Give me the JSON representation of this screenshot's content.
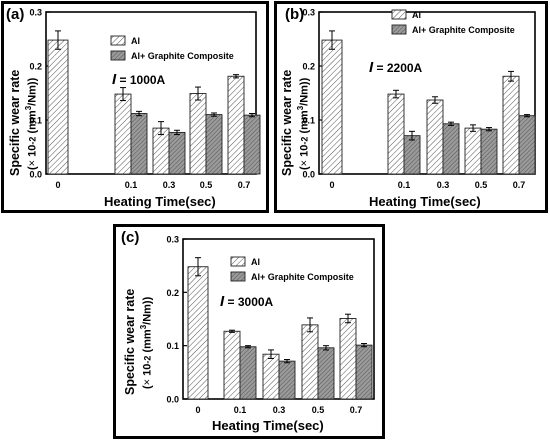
{
  "chart_data": [
    {
      "type": "bar",
      "panel_label": "(a)",
      "current_symbol": "I",
      "current_text": "= 1000A",
      "categories": [
        "0",
        "0.1",
        "0.3",
        "0.5",
        "0.7"
      ],
      "series": [
        {
          "name": "Al",
          "values": [
            0.248,
            0.148,
            0.085,
            0.149,
            0.181
          ],
          "errors": [
            0.017,
            0.012,
            0.012,
            0.012,
            0.003
          ]
        },
        {
          "name": "Al+ Graphite Composite",
          "values": [
            null,
            0.112,
            0.077,
            0.11,
            0.109
          ],
          "errors": [
            null,
            0.004,
            0.004,
            0.003,
            0.003
          ]
        }
      ],
      "ylabel_main": "Specific wear rate",
      "ylabel_unit": "(× 10-2 (mm3/Nm))",
      "xlabel": "Heating Time(sec)",
      "yticks": [
        "0.0",
        "0.1",
        "0.2",
        "0.3"
      ],
      "ylim": [
        0,
        0.3
      ],
      "legend": "top-right",
      "grid": false
    },
    {
      "type": "bar",
      "panel_label": "(b)",
      "current_symbol": "I",
      "current_text": "= 2200A",
      "categories": [
        "0",
        "0.1",
        "0.3",
        "0.5",
        "0.7"
      ],
      "series": [
        {
          "name": "Al",
          "values": [
            0.248,
            0.148,
            0.137,
            0.085,
            0.181
          ],
          "errors": [
            0.017,
            0.007,
            0.006,
            0.006,
            0.009
          ]
        },
        {
          "name": "Al+ Graphite Composite",
          "values": [
            null,
            0.071,
            0.093,
            0.083,
            0.108
          ],
          "errors": [
            null,
            0.008,
            0.003,
            0.003,
            0.002
          ]
        }
      ],
      "ylabel_main": "Specific wear rate",
      "ylabel_unit": "(× 10-2 (mm3/Nm))",
      "xlabel": "Heating Time(sec)",
      "yticks": [
        "0.0",
        "0.1",
        "0.2",
        "0.3"
      ],
      "ylim": [
        0,
        0.3
      ],
      "legend": "top-right",
      "grid": false
    },
    {
      "type": "bar",
      "panel_label": "(c)",
      "current_symbol": "I",
      "current_text": "= 3000A",
      "categories": [
        "0",
        "0.1",
        "0.3",
        "0.5",
        "0.7"
      ],
      "series": [
        {
          "name": "Al",
          "values": [
            0.248,
            0.127,
            0.084,
            0.139,
            0.151
          ],
          "errors": [
            0.017,
            0.002,
            0.008,
            0.013,
            0.008
          ]
        },
        {
          "name": "Al+ Graphite Composite",
          "values": [
            null,
            0.098,
            0.071,
            0.096,
            0.101
          ],
          "errors": [
            null,
            0.002,
            0.003,
            0.004,
            0.003
          ]
        }
      ],
      "ylabel_main": "Specific wear rate",
      "ylabel_unit": "(× 10-2 (mm3/Nm))",
      "xlabel": "Heating Time(sec)",
      "yticks": [
        "0.0",
        "0.1",
        "0.2",
        "0.3"
      ],
      "ylim": [
        0,
        0.3
      ],
      "legend": "top-right",
      "grid": false
    }
  ],
  "colors": {
    "frame": "#000000",
    "al_fill": "#ffffff",
    "al_hatch": "#555555",
    "comp_fill": "#9a9a9a",
    "comp_hatch": "#444444"
  }
}
